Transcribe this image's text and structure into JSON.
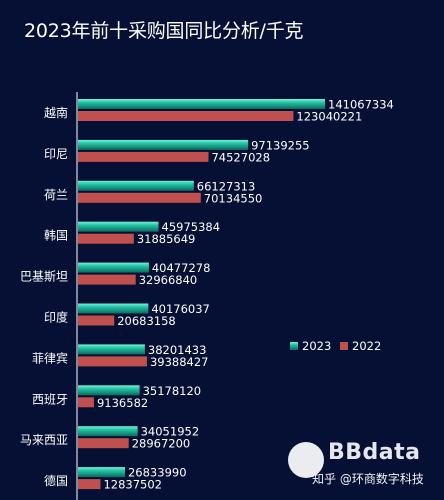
{
  "chart_data": {
    "type": "bar",
    "orientation": "horizontal",
    "title": "2023年前十采购国同比分析/千克",
    "categories": [
      "越南",
      "印尼",
      "荷兰",
      "韩国",
      "巴基斯坦",
      "印度",
      "菲律宾",
      "西班牙",
      "马来西亚",
      "德国"
    ],
    "series": [
      {
        "name": "2023",
        "color": "#1fbfa0",
        "values": [
          141067334,
          97139255,
          66127313,
          45975384,
          40477278,
          40176037,
          38201433,
          35178120,
          34051952,
          26833990
        ]
      },
      {
        "name": "2022",
        "color": "#c0504d",
        "values": [
          123040221,
          74527028,
          70134550,
          31885649,
          32966840,
          20683158,
          39388427,
          9136582,
          28967200,
          12837502
        ]
      }
    ],
    "xlim": [
      0,
      141067334
    ],
    "grid": false,
    "legend_position": "right-middle"
  },
  "watermark": {
    "brand": "BBdata",
    "source": "知乎 @环商数字科技"
  }
}
